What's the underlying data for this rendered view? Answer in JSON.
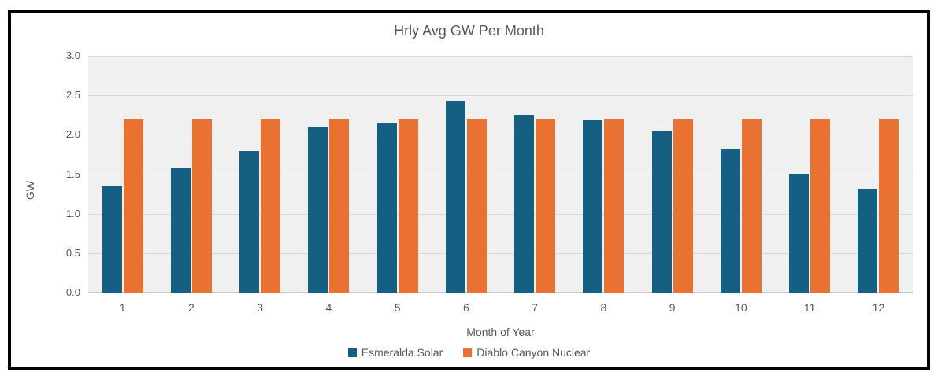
{
  "chart_data": {
    "type": "bar",
    "title": "Hrly Avg GW Per Month",
    "xlabel": "Month of Year",
    "ylabel": "GW",
    "categories": [
      "1",
      "2",
      "3",
      "4",
      "5",
      "6",
      "7",
      "8",
      "9",
      "10",
      "11",
      "12"
    ],
    "series": [
      {
        "name": "Esmeralda Solar",
        "color": "#156082",
        "values": [
          1.36,
          1.57,
          1.79,
          2.09,
          2.15,
          2.43,
          2.25,
          2.18,
          2.04,
          1.81,
          1.5,
          1.32
        ]
      },
      {
        "name": "Diablo Canyon Nuclear",
        "color": "#E97132",
        "values": [
          2.2,
          2.2,
          2.2,
          2.2,
          2.2,
          2.2,
          2.2,
          2.2,
          2.2,
          2.2,
          2.2,
          2.2
        ]
      }
    ],
    "ylim": [
      0,
      3
    ],
    "ytick_labels": [
      "3.0",
      "2.5",
      "2.0",
      "1.5",
      "1.0",
      "0.5",
      "0.0"
    ],
    "grid": true,
    "legend_position": "bottom",
    "plot_background": "#F0F0F0",
    "gridline_color": "#D9D9D9",
    "text_color": "#595959",
    "frame_border_color": "#000000"
  }
}
